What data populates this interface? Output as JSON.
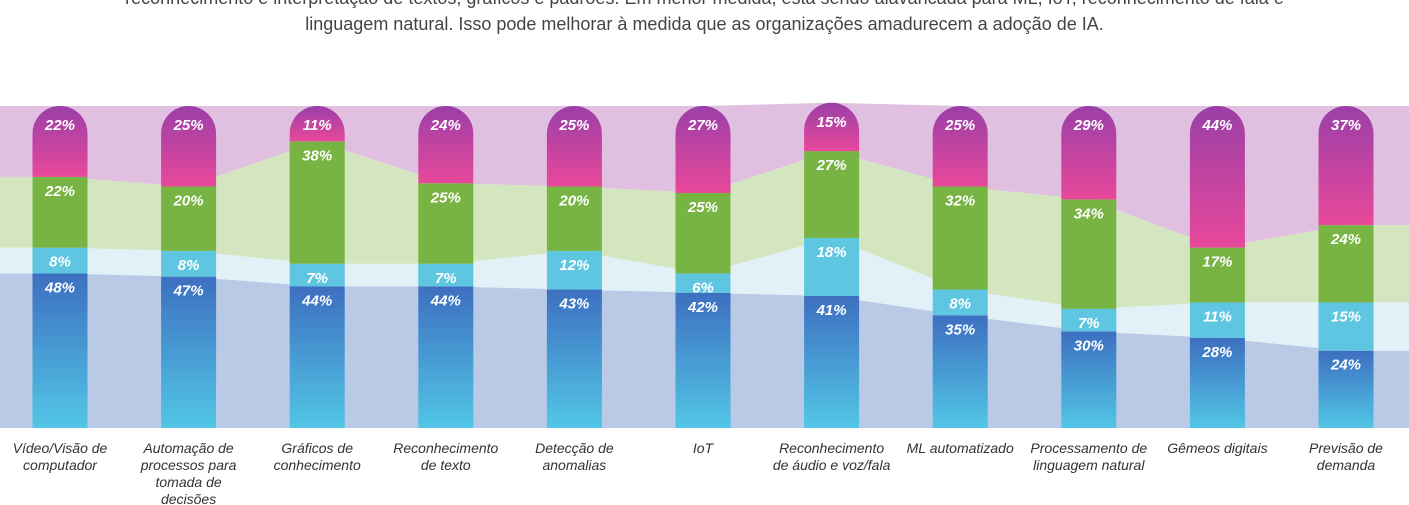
{
  "chart_data": {
    "type": "stacked_bar",
    "subtitle_lines": [
      "reconhecimento e interpretação de textos, gráficos e padrões. Em menor medida, está sendo alavancada para ML, IoT, reconhecimento de fala e",
      "linguagem natural. Isso pode melhorar à medida que as organizações amadurecem a adoção de IA."
    ],
    "categories": [
      "Vídeo/Visão de computador",
      "Automação de processos para tomada de decisões",
      "Gráficos de conhecimento",
      "Reconhecimento de texto",
      "Detecção de anomalias",
      "IoT",
      "Reconhecimento de áudio e voz/fala",
      "ML automatizado",
      "Processamento de linguagem natural",
      "Gêmeos digitais",
      "Previsão de demanda"
    ],
    "ylim": [
      0,
      100
    ],
    "series": [
      {
        "color": "#3f78c4",
        "area_color": "#b8cae6",
        "values": [
          48,
          47,
          44,
          44,
          43,
          42,
          41,
          35,
          30,
          28,
          24
        ],
        "value_labels": [
          "48%",
          "47%",
          "44%",
          "44%",
          "43%",
          "42%",
          "41%",
          "35%",
          "30%",
          "28%",
          "24%"
        ]
      },
      {
        "color": "#5ec6e0",
        "area_color": "#e2f0f8",
        "values": [
          8,
          8,
          7,
          7,
          12,
          6,
          18,
          8,
          7,
          11,
          15
        ],
        "value_labels": [
          "8%",
          "8%",
          "7%",
          "7%",
          "12%",
          "6%",
          "18%",
          "8%",
          "7%",
          "11%",
          "15%"
        ]
      },
      {
        "color": "#78b444",
        "area_color": "#d4e6c0",
        "values": [
          22,
          20,
          38,
          25,
          20,
          25,
          27,
          32,
          34,
          17,
          24
        ],
        "value_labels": [
          "22%",
          "20%",
          "38%",
          "25%",
          "20%",
          "25%",
          "27%",
          "32%",
          "34%",
          "17%",
          "24%"
        ]
      },
      {
        "color": "#a03fa8",
        "area_color": "#e0bfe0",
        "values": [
          22,
          25,
          11,
          24,
          25,
          27,
          15,
          25,
          29,
          44,
          37
        ],
        "value_labels": [
          "22%",
          "25%",
          "11%",
          "24%",
          "25%",
          "27%",
          "15%",
          "25%",
          "29%",
          "44%",
          "37%"
        ]
      }
    ]
  }
}
